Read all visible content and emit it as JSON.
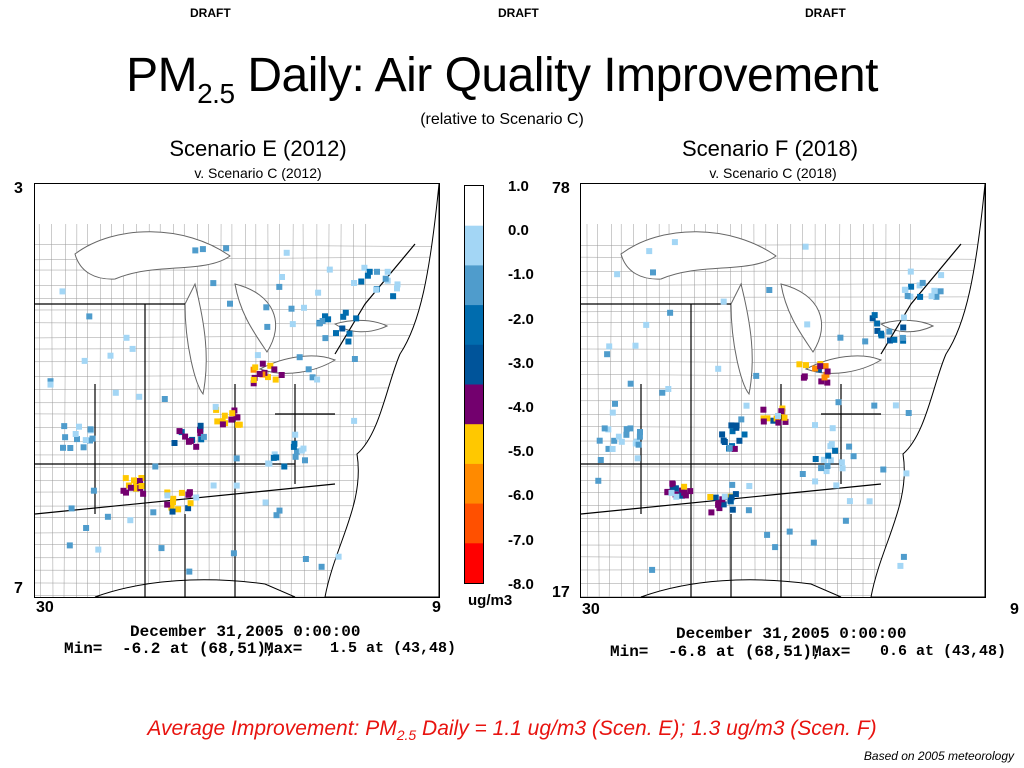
{
  "header": {
    "draft_labels": [
      "DRAFT",
      "DRAFT",
      "DRAFT"
    ]
  },
  "title": {
    "main_prefix": "PM",
    "main_sub": "2.5",
    "main_suffix": " Daily: Air Quality Improvement",
    "subtitle": "(relative to Scenario C)"
  },
  "colors": {
    "bins": [
      "#ff0000",
      "#ff5000",
      "#ff8a00",
      "#ffc800",
      "#73006e",
      "#00549a",
      "#006cae",
      "#4f9ccc",
      "#a3d6f5",
      "#ffffff"
    ],
    "state_lines": "#000000",
    "county_lines": "#9a9a9a",
    "water": "#ffffff"
  },
  "colorbar": {
    "ticks": [
      "1.0",
      "0.0",
      "-1.0",
      "-2.0",
      "-3.0",
      "-4.0",
      "-5.0",
      "-6.0",
      "-7.0",
      "-8.0"
    ],
    "unit": "ug/m3"
  },
  "maps": [
    {
      "id": "E",
      "title": "Scenario E (2012)",
      "subtitle": "v. Scenario C (2012)",
      "corner_top_left": "3",
      "corner_bottom_left": "7",
      "x_start": "30",
      "x_end": "9",
      "timestamp": "December 31,2005 0:00:00",
      "stats_label": "Min=",
      "stats_min": "-6.2 at (68,51),",
      "stats_max_label": "Max=",
      "stats_max": "1.5 at (43,48)"
    },
    {
      "id": "F",
      "title": "Scenario F (2018)",
      "subtitle": "v. Scenario C (2018)",
      "corner_top_left": "78",
      "corner_bottom_left": "17",
      "x_start": "30",
      "x_end": "9",
      "timestamp": "December 31,2005 0:00:00",
      "stats_label": "Min=",
      "stats_min": "-6.8 at (68,51),",
      "stats_max_label": "Max=",
      "stats_max": "0.6 at (43,48)"
    }
  ],
  "footer": {
    "avg_prefix": "Average Improvement: PM",
    "avg_sub": "2.5",
    "avg_suffix": " Daily = 1.1 ug/m3 (Scen. E); 1.3 ug/m3 (Scen. F)",
    "note": "Based on 2005 meteorology"
  }
}
